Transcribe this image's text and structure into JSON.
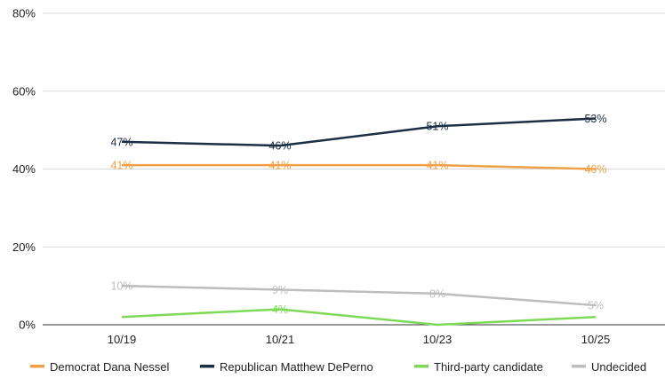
{
  "chart_data": {
    "type": "line",
    "title": "",
    "xlabel": "",
    "ylabel": "",
    "categories": [
      "10/19",
      "10/21",
      "10/23",
      "10/25"
    ],
    "ylim": [
      0,
      80
    ],
    "yticks": [
      0,
      20,
      40,
      60,
      80
    ],
    "ytick_labels": [
      "0%",
      "20%",
      "40%",
      "60%",
      "80%"
    ],
    "grid": "horizontal",
    "legend_position": "bottom",
    "series": [
      {
        "name": "Democrat Dana Nessel",
        "color": "#f0a046",
        "values": [
          41,
          41,
          41,
          40
        ],
        "labels": [
          "41%",
          "41%",
          "41%",
          "40%"
        ]
      },
      {
        "name": "Republican Matthew DePerno",
        "color": "#1b2e45",
        "values": [
          47,
          46,
          51,
          53
        ],
        "labels": [
          "47%",
          "46%",
          "51%",
          "53%"
        ]
      },
      {
        "name": "Third-party candidate",
        "color": "#7ed957",
        "values": [
          2,
          4,
          0,
          2
        ],
        "labels": [
          "",
          "4%",
          "",
          ""
        ]
      },
      {
        "name": "Undecided",
        "color": "#bdbdbd",
        "values": [
          10,
          9,
          8,
          5
        ],
        "labels": [
          "10%",
          "9%",
          "8%",
          "5%"
        ]
      }
    ]
  }
}
